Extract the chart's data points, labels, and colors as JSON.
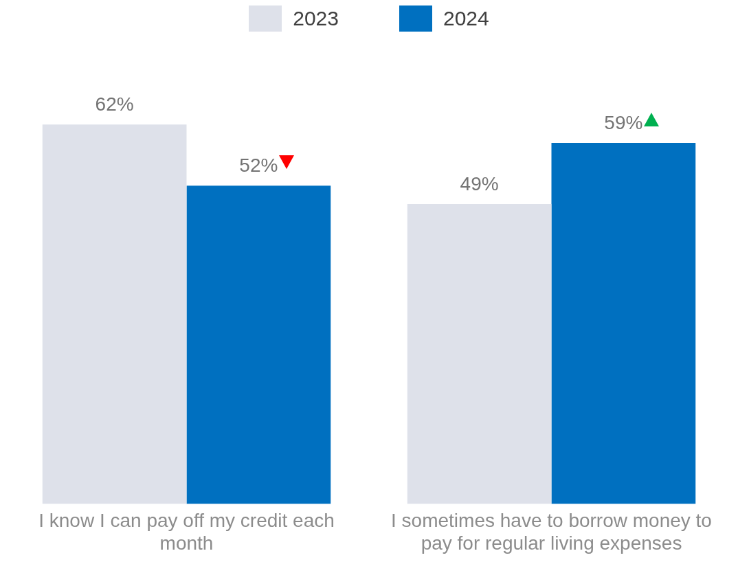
{
  "chart_data": {
    "type": "bar",
    "categories": [
      "I know I can pay off my credit each month",
      "I sometimes have to borrow money to pay for regular living expenses"
    ],
    "series": [
      {
        "name": "2023",
        "color": "#dee1ea",
        "values": [
          62,
          49
        ],
        "value_labels": [
          "62%",
          "49%"
        ]
      },
      {
        "name": "2024",
        "color": "#0070c0",
        "values": [
          52,
          59
        ],
        "value_labels": [
          "52%",
          "59%"
        ]
      }
    ],
    "legend": "top",
    "grid": false,
    "tick_labels": "x"
  }
}
